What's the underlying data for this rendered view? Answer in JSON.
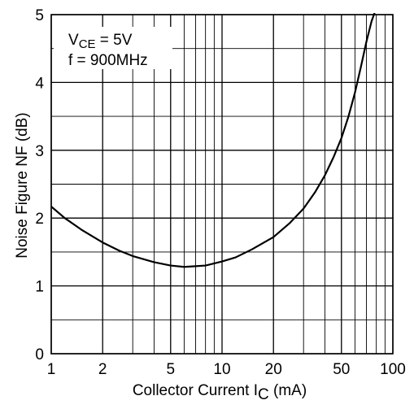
{
  "chart_data": {
    "type": "line",
    "x_scale": "log",
    "xlim": [
      1,
      100
    ],
    "ylim": [
      0,
      5
    ],
    "x_ticks": [
      {
        "value": 1,
        "label": "1"
      },
      {
        "value": 2,
        "label": "2"
      },
      {
        "value": 5,
        "label": "5"
      },
      {
        "value": 10,
        "label": "10"
      },
      {
        "value": 20,
        "label": "20"
      },
      {
        "value": 50,
        "label": "50"
      },
      {
        "value": 100,
        "label": "100"
      }
    ],
    "y_ticks": [
      {
        "value": 0,
        "label": "0"
      },
      {
        "value": 1,
        "label": "1"
      },
      {
        "value": 2,
        "label": "2"
      },
      {
        "value": 3,
        "label": "3"
      },
      {
        "value": 4,
        "label": "4"
      },
      {
        "value": 5,
        "label": "5"
      }
    ],
    "x_minor_grid": [
      3,
      4,
      6,
      7,
      8,
      9,
      30,
      40,
      60,
      70,
      80,
      90
    ],
    "y_minor_grid": [
      0.5,
      1.5,
      2.5,
      3.5,
      4.5
    ],
    "grid": true,
    "xlabel": {
      "main": "Collector Current  I",
      "sub": "C",
      "unit": " (mA)"
    },
    "ylabel": {
      "main": "Noise Figure  NF  (dB)"
    },
    "annotations": {
      "condition_1": {
        "main": "V",
        "sub": "CE",
        "rest": " = 5V"
      },
      "condition_2": "f = 900MHz"
    },
    "series": [
      {
        "x": [
          1,
          1.2,
          1.5,
          2,
          2.5,
          3,
          4,
          5,
          6,
          7,
          8,
          10,
          12,
          15,
          20,
          25,
          30,
          35,
          40,
          45,
          50,
          55,
          60,
          65,
          70,
          75,
          80
        ],
        "y": [
          2.17,
          2.0,
          1.83,
          1.64,
          1.52,
          1.44,
          1.35,
          1.3,
          1.28,
          1.29,
          1.3,
          1.36,
          1.42,
          1.54,
          1.72,
          1.93,
          2.14,
          2.38,
          2.63,
          2.9,
          3.18,
          3.5,
          3.85,
          4.23,
          4.6,
          4.9,
          5.1
        ]
      }
    ]
  }
}
